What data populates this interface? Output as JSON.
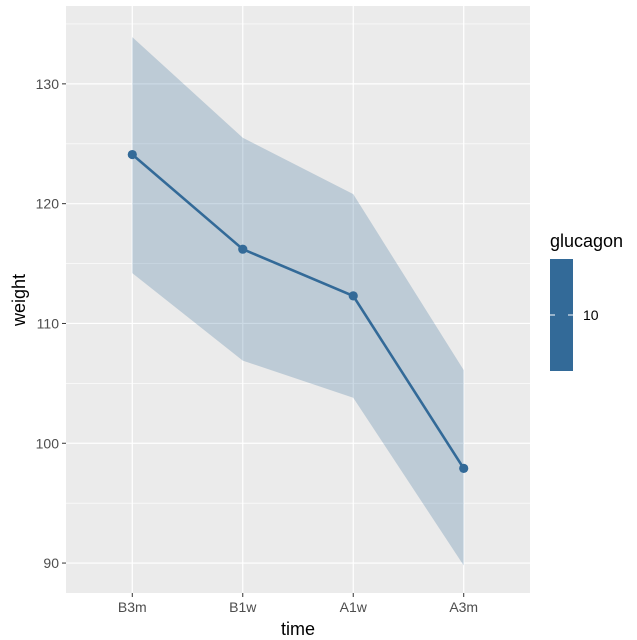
{
  "chart_data": {
    "type": "line",
    "title": "",
    "xlabel": "time",
    "ylabel": "weight",
    "categories": [
      "B3m",
      "B1w",
      "A1w",
      "A3m"
    ],
    "series": [
      {
        "values": [
          124.1,
          116.2,
          112.3,
          97.9
        ],
        "lower": [
          114.2,
          106.9,
          103.8,
          89.8
        ],
        "upper": [
          133.9,
          125.5,
          120.8,
          106.1
        ]
      }
    ],
    "ylim": [
      87.5,
      136.5
    ],
    "yticks": [
      90,
      100,
      110,
      120,
      130
    ],
    "grid": true,
    "legend": {
      "title": "glucagon",
      "label": "10",
      "placement": "right"
    },
    "colors": {
      "line": "#336a98",
      "ribbon": "#336a98",
      "panel": "#ebebeb",
      "grid": "#ffffff"
    }
  }
}
